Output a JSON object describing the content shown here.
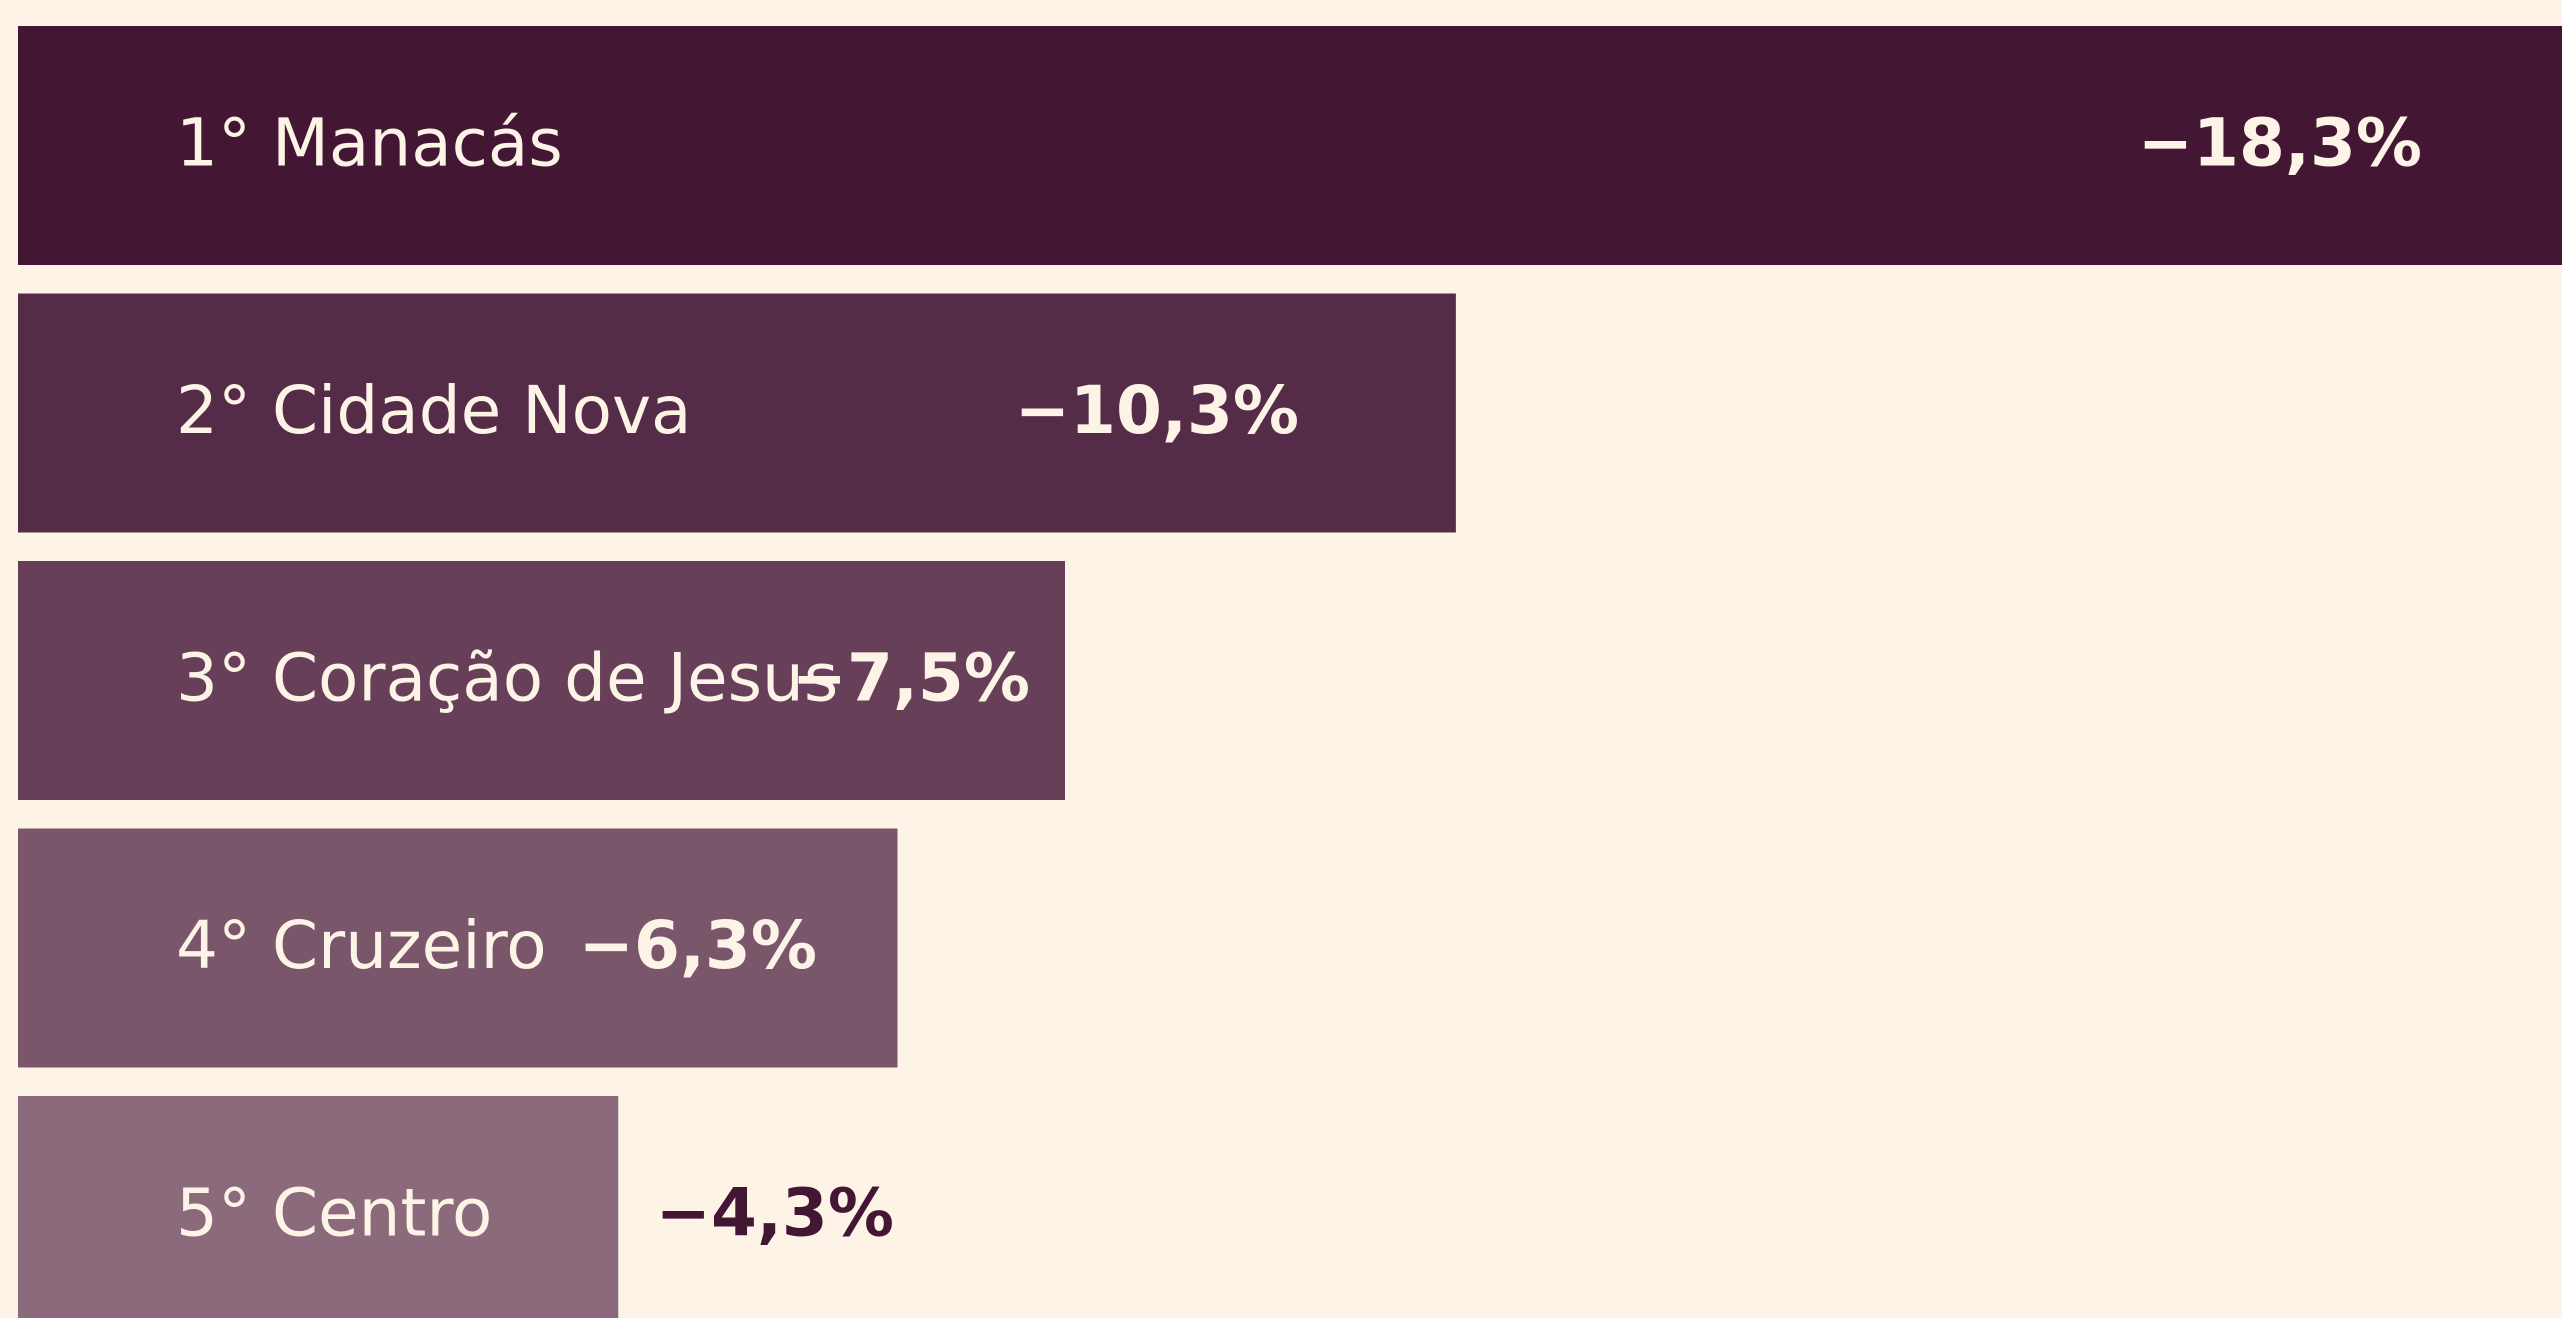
{
  "chart_data": {
    "type": "barh",
    "categories": [
      "1° Manacás",
      "2° Cidade Nova",
      "3° Coração de Jesus",
      "4° Cruzeiro",
      "5° Centro"
    ],
    "values": [
      -18.3,
      -10.3,
      -7.5,
      -6.3,
      -4.3
    ],
    "value_labels": [
      "−18,3%",
      "−10,3%",
      "−7,5%",
      "−6,3%",
      "−4,3%"
    ],
    "colors": [
      "#431733",
      "#552c47",
      "#673f59",
      "#79566a",
      "#8a6a7b"
    ]
  }
}
